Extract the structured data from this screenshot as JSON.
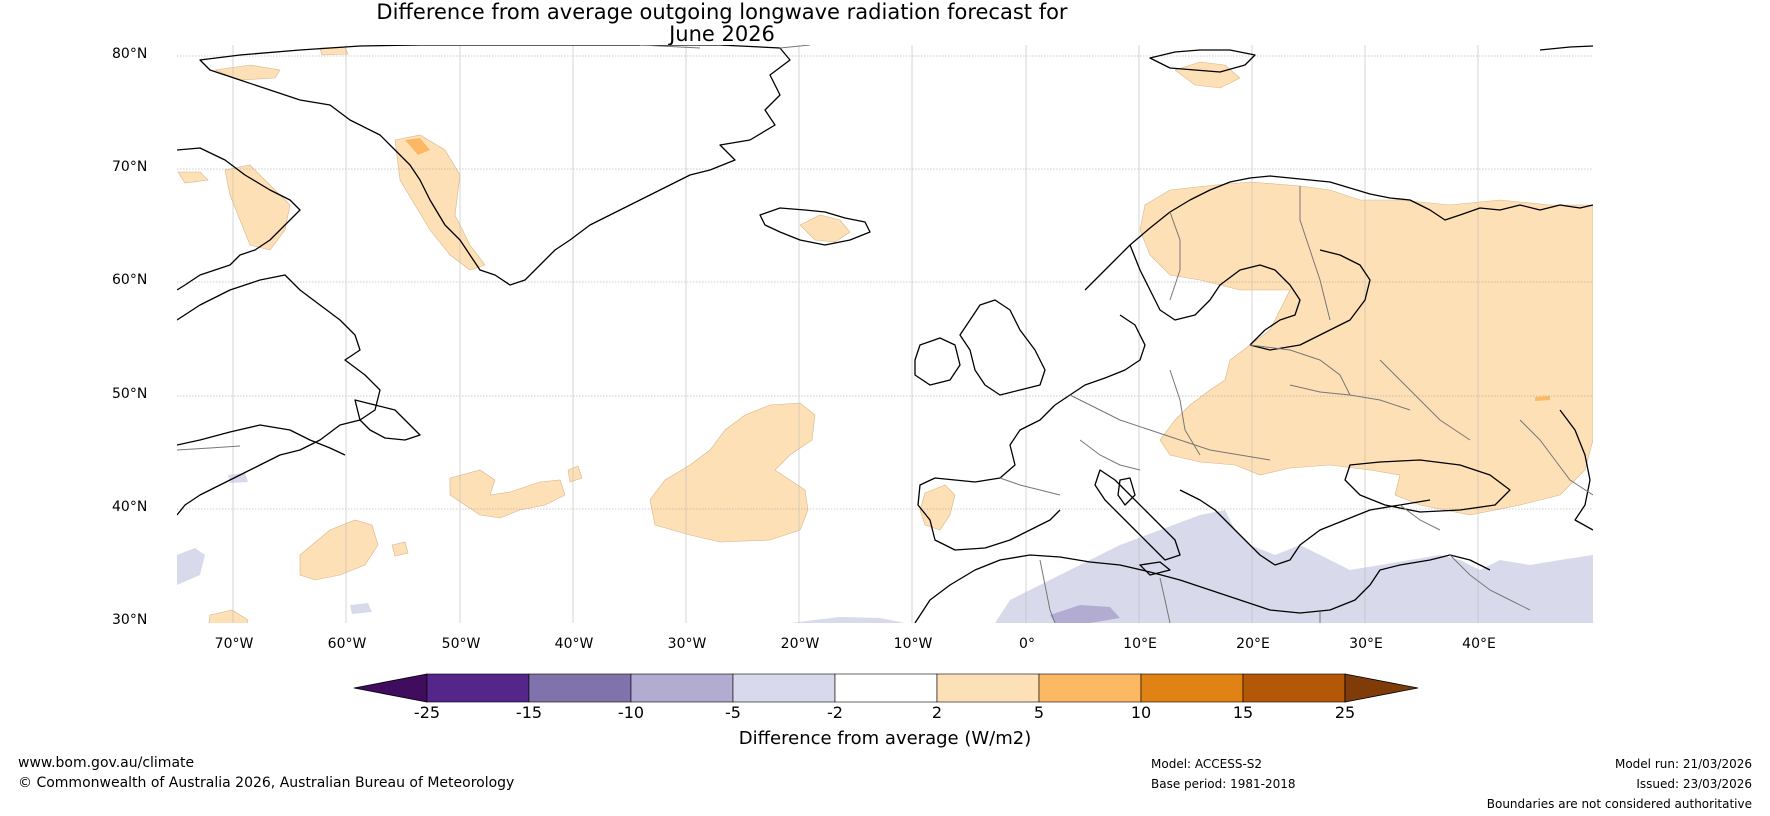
{
  "title": {
    "line1": "Difference from average outgoing longwave radiation forecast for",
    "line2": "June 2026"
  },
  "map": {
    "lat_labels": [
      "80°N",
      "70°N",
      "60°N",
      "50°N",
      "40°N",
      "30°N"
    ],
    "lon_labels": [
      "70°W",
      "60°W",
      "50°W",
      "40°W",
      "30°W",
      "20°W",
      "10°W",
      "0°",
      "10°E",
      "20°E",
      "30°E",
      "40°E"
    ],
    "extent": {
      "lon_min": -75,
      "lon_max": 50,
      "lat_min": 30,
      "lat_max": 81
    }
  },
  "colorbar": {
    "ticks": [
      "-25",
      "-15",
      "-10",
      "-5",
      "-2",
      "2",
      "5",
      "10",
      "15",
      "25"
    ],
    "colors": [
      "#3f0c5e",
      "#54268a",
      "#8073ac",
      "#b2abd2",
      "#d8daeb",
      "#ffffff",
      "#fee0b6",
      "#fdb863",
      "#e08214",
      "#b35806",
      "#7f3b08"
    ],
    "title": "Difference from average (W/m2)"
  },
  "footer": {
    "url": "www.bom.gov.au/climate",
    "copyright": "© Commonwealth of Australia 2026, Australian Bureau of Meteorology",
    "model": "Model: ACCESS-S2",
    "base_period": "Base period: 1981-2018",
    "model_run": "Model run: 21/03/2026",
    "issued": "Issued: 23/03/2026",
    "disclaimer": "Boundaries are not considered authoritative"
  }
}
